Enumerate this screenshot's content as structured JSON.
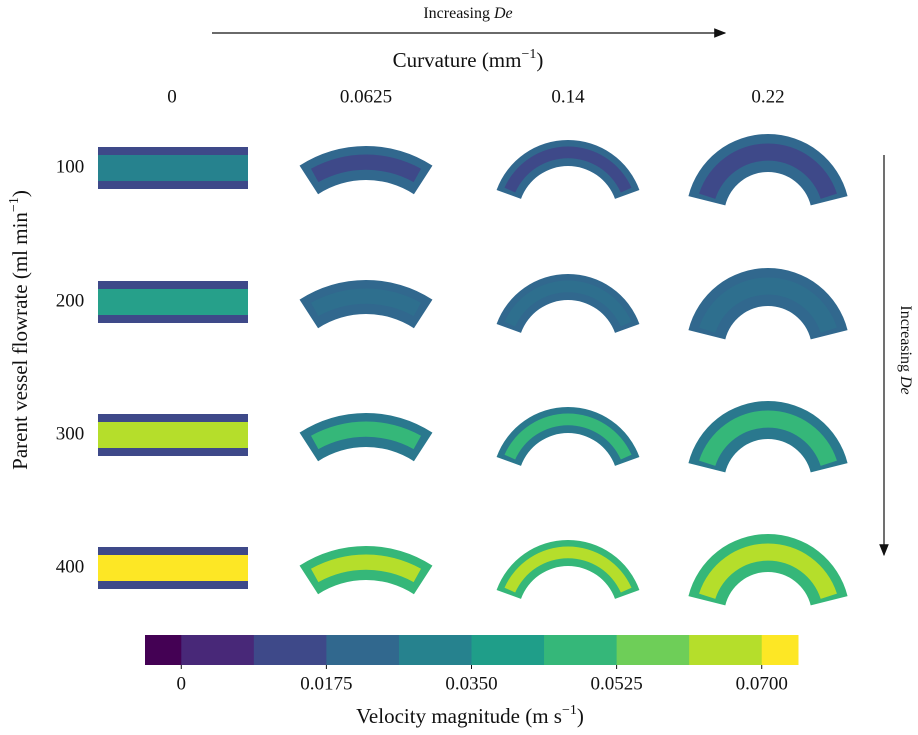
{
  "top_label": {
    "text": "Increasing ",
    "emphasis": "De"
  },
  "curvature_label": {
    "text": "Curvature (mm",
    "superscript": "−1",
    "suffix": ")"
  },
  "columns": [
    "0",
    "0.0625",
    "0.14",
    "0.22"
  ],
  "y_label": {
    "text": "Parent vessel flowrate (ml min",
    "superscript": "−1",
    "suffix": ")"
  },
  "rows": [
    "100",
    "200",
    "300",
    "400"
  ],
  "right_label": {
    "text": "Increasing ",
    "emphasis": "De"
  },
  "colorbar": {
    "lim": [
      -0.004375,
      0.074375
    ],
    "colors": [
      "#440154",
      "#482878",
      "#3e4989",
      "#31688e",
      "#26828e",
      "#1f9e89",
      "#35b779",
      "#6ece58",
      "#b5de2b",
      "#fde725"
    ],
    "ticks": [
      0,
      0.0175,
      {
        "value": 0.035,
        "label": "0.0350"
      },
      0.0525,
      {
        "value": 0.07,
        "label": "0.0700"
      }
    ],
    "label": {
      "text": "Velocity magnitude (m s",
      "superscript": "−1",
      "suffix": ")"
    }
  }
}
